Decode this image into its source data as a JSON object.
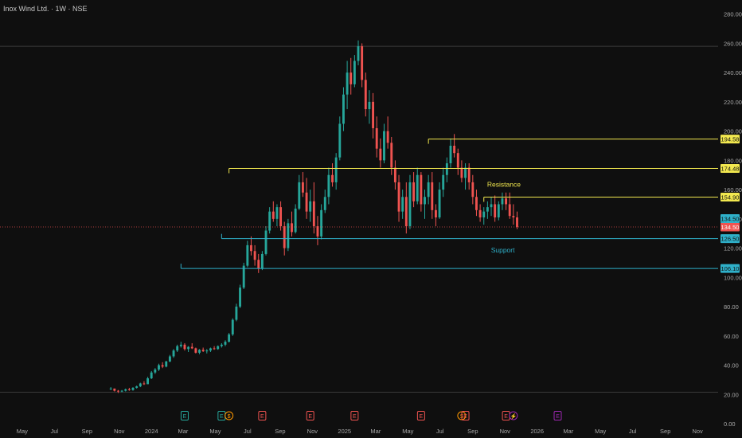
{
  "title": "Inox Wind Ltd. · 1W · NSE",
  "chart_data": {
    "type": "candlestick",
    "y_ticks": [
      "280.00",
      "260.00",
      "240.00",
      "220.00",
      "200.00",
      "180.00",
      "160.00",
      "140.00",
      "120.00",
      "100.00",
      "80.00",
      "60.00",
      "40.00",
      "20.00",
      "0.00"
    ],
    "y_tick_values": [
      280,
      260,
      240,
      220,
      200,
      180,
      160,
      140,
      120,
      100,
      80,
      60,
      40,
      20,
      0
    ],
    "ylim": [
      0,
      282
    ],
    "x_ticks": [
      "May",
      "Jul",
      "Sep",
      "Nov",
      "2024",
      "Mar",
      "May",
      "Jul",
      "Sep",
      "Nov",
      "2025",
      "Mar",
      "May",
      "Jul",
      "Sep",
      "Nov",
      "2026",
      "Mar",
      "May",
      "Jul",
      "Sep",
      "Nov"
    ],
    "x_start": "2023-03-20",
    "x_end": "2026-12-10",
    "last_candle": "2025-11-24",
    "colors": {
      "up": "#26a69a",
      "down": "#ef5350",
      "resistance": "#f2e84f",
      "support": "#2fb0c9",
      "current": "#ef5350"
    },
    "horizontal_levels": [
      {
        "label": "194.58",
        "value": 194.58,
        "from": "2025-06-09",
        "kind": "resistance"
      },
      {
        "label": "174.48",
        "value": 174.48,
        "from": "2024-05-27",
        "kind": "resistance"
      },
      {
        "label": "154.90",
        "value": 154.9,
        "from": "2025-09-22",
        "kind": "resistance"
      },
      {
        "label": "134.50",
        "value": 134.5,
        "from": "2023-03-20",
        "kind": "current"
      },
      {
        "label": "126.50",
        "value": 126.5,
        "from": "2024-05-13",
        "kind": "support"
      },
      {
        "label": "106.10",
        "value": 106.1,
        "from": "2024-02-26",
        "kind": "support"
      }
    ],
    "extra_price_badges": [
      {
        "label": "134.50",
        "value": 140.2,
        "kind": "support"
      }
    ],
    "plain_lines": [
      {
        "value": 258
      },
      {
        "value": 21.5
      }
    ],
    "annotations": [
      {
        "text": "Resistance",
        "value": 162,
        "at": "2025-10-30",
        "kind": "resistance"
      },
      {
        "text": "Support",
        "value": 117,
        "at": "2025-10-28",
        "kind": "support"
      }
    ],
    "event_markers": [
      {
        "label": "E",
        "at": "2024-03-04",
        "color": "#26a69a"
      },
      {
        "label": "E",
        "at": "2024-05-13",
        "color": "#26a69a"
      },
      {
        "label": "$",
        "at": "2024-05-27",
        "color": "#ff9800"
      },
      {
        "label": "E",
        "at": "2024-07-29",
        "color": "#ef5350"
      },
      {
        "label": "E",
        "at": "2024-10-28",
        "color": "#ef5350"
      },
      {
        "label": "E",
        "at": "2025-01-20",
        "color": "#ef5350"
      },
      {
        "label": "E",
        "at": "2025-05-26",
        "color": "#ef5350"
      },
      {
        "label": "$",
        "at": "2025-08-11",
        "color": "#ff9800"
      },
      {
        "label": "E",
        "at": "2025-08-18",
        "color": "#ef5350"
      },
      {
        "label": "E",
        "at": "2025-11-03",
        "color": "#ef5350"
      },
      {
        "label": "⚡",
        "at": "2025-11-17",
        "color": "#9c27b0"
      },
      {
        "label": "E",
        "at": "2026-02-09",
        "color": "#9c27b0"
      }
    ],
    "candles": [
      [
        24,
        25,
        23,
        24
      ],
      [
        24,
        24,
        22,
        22.5
      ],
      [
        22.5,
        23,
        21,
        22
      ],
      [
        22,
        23,
        21.5,
        22.5
      ],
      [
        22.5,
        24,
        22,
        23.5
      ],
      [
        23.5,
        24.5,
        22.5,
        23
      ],
      [
        23,
        25,
        22.5,
        24.5
      ],
      [
        24.5,
        26,
        24,
        25.5
      ],
      [
        25.5,
        28,
        25,
        27.5
      ],
      [
        27.5,
        29,
        26.5,
        27
      ],
      [
        27,
        32,
        27,
        31
      ],
      [
        31,
        36,
        30.5,
        35
      ],
      [
        35,
        38,
        34,
        37
      ],
      [
        37,
        41,
        36,
        40
      ],
      [
        40,
        42,
        38,
        39
      ],
      [
        39,
        43,
        38.5,
        42.5
      ],
      [
        42.5,
        47,
        42,
        46
      ],
      [
        46,
        51,
        45,
        50
      ],
      [
        50,
        54,
        49,
        53
      ],
      [
        53,
        56,
        52,
        54
      ],
      [
        54,
        55,
        50,
        51
      ],
      [
        51,
        53,
        49,
        52.5
      ],
      [
        52.5,
        55,
        51,
        51.5
      ],
      [
        51.5,
        52,
        48,
        48.5
      ],
      [
        48.5,
        51,
        47.5,
        50.5
      ],
      [
        50.5,
        52,
        49,
        49.5
      ],
      [
        49.5,
        51,
        48,
        50
      ],
      [
        50,
        52,
        49,
        51.5
      ],
      [
        51.5,
        53,
        50.5,
        51
      ],
      [
        51,
        53.5,
        50.5,
        53
      ],
      [
        53,
        55,
        52,
        54
      ],
      [
        54,
        57,
        53,
        56
      ],
      [
        56,
        62,
        55.5,
        61
      ],
      [
        61,
        72,
        60,
        71
      ],
      [
        71,
        82,
        70,
        80
      ],
      [
        80,
        95,
        79,
        93
      ],
      [
        93,
        110,
        92,
        108
      ],
      [
        108,
        125,
        107,
        122
      ],
      [
        122,
        128,
        115,
        118
      ],
      [
        118,
        122,
        108,
        112
      ],
      [
        112,
        116,
        103,
        106
      ],
      [
        106,
        118,
        105,
        116
      ],
      [
        116,
        135,
        115,
        132
      ],
      [
        132,
        148,
        130,
        145
      ],
      [
        145,
        152,
        138,
        140
      ],
      [
        140,
        150,
        135,
        148
      ],
      [
        148,
        152,
        132,
        135
      ],
      [
        135,
        138,
        115,
        120
      ],
      [
        120,
        140,
        118,
        137
      ],
      [
        137,
        145,
        128,
        131
      ],
      [
        131,
        150,
        130,
        147
      ],
      [
        147,
        170,
        146,
        165
      ],
      [
        165,
        172,
        155,
        158
      ],
      [
        158,
        168,
        140,
        145
      ],
      [
        145,
        160,
        138,
        152
      ],
      [
        152,
        165,
        130,
        135
      ],
      [
        135,
        142,
        122,
        128
      ],
      [
        128,
        150,
        126,
        146
      ],
      [
        146,
        160,
        144,
        155
      ],
      [
        155,
        175,
        150,
        170
      ],
      [
        170,
        178,
        162,
        165
      ],
      [
        165,
        185,
        160,
        182
      ],
      [
        182,
        210,
        180,
        205
      ],
      [
        205,
        230,
        200,
        225
      ],
      [
        225,
        248,
        215,
        240
      ],
      [
        240,
        250,
        225,
        232
      ],
      [
        232,
        252,
        230,
        248
      ],
      [
        248,
        262,
        245,
        258
      ],
      [
        258,
        260,
        230,
        235
      ],
      [
        235,
        240,
        210,
        215
      ],
      [
        215,
        228,
        205,
        220
      ],
      [
        220,
        226,
        195,
        202
      ],
      [
        202,
        210,
        182,
        188
      ],
      [
        188,
        195,
        175,
        180
      ],
      [
        180,
        205,
        178,
        200
      ],
      [
        200,
        210,
        188,
        192
      ],
      [
        192,
        196,
        170,
        175
      ],
      [
        175,
        180,
        160,
        165
      ],
      [
        165,
        170,
        138,
        145
      ],
      [
        145,
        160,
        140,
        155
      ],
      [
        155,
        165,
        130,
        135
      ],
      [
        135,
        170,
        133,
        165
      ],
      [
        165,
        172,
        148,
        152
      ],
      [
        152,
        175,
        150,
        170
      ],
      [
        170,
        172,
        145,
        150
      ],
      [
        150,
        160,
        140,
        155
      ],
      [
        155,
        170,
        150,
        165
      ],
      [
        165,
        172,
        140,
        146
      ],
      [
        146,
        150,
        135,
        141
      ],
      [
        141,
        165,
        140,
        160
      ],
      [
        160,
        175,
        155,
        170
      ],
      [
        170,
        182,
        165,
        178
      ],
      [
        178,
        195,
        175,
        190
      ],
      [
        190,
        198,
        182,
        185
      ],
      [
        185,
        188,
        170,
        175
      ],
      [
        175,
        180,
        165,
        168
      ],
      [
        168,
        178,
        160,
        175
      ],
      [
        175,
        178,
        160,
        165
      ],
      [
        165,
        170,
        150,
        155
      ],
      [
        155,
        160,
        142,
        146
      ],
      [
        146,
        150,
        138,
        141
      ],
      [
        141,
        148,
        136,
        145
      ],
      [
        145,
        152,
        140,
        148
      ],
      [
        148,
        155,
        142,
        150
      ],
      [
        150,
        156,
        138,
        141
      ],
      [
        141,
        152,
        139,
        150
      ],
      [
        150,
        158,
        146,
        154
      ],
      [
        154,
        158,
        146,
        150
      ],
      [
        150,
        158,
        140,
        142
      ],
      [
        142,
        150,
        136,
        141
      ],
      [
        141,
        145,
        133,
        134.5
      ]
    ]
  }
}
